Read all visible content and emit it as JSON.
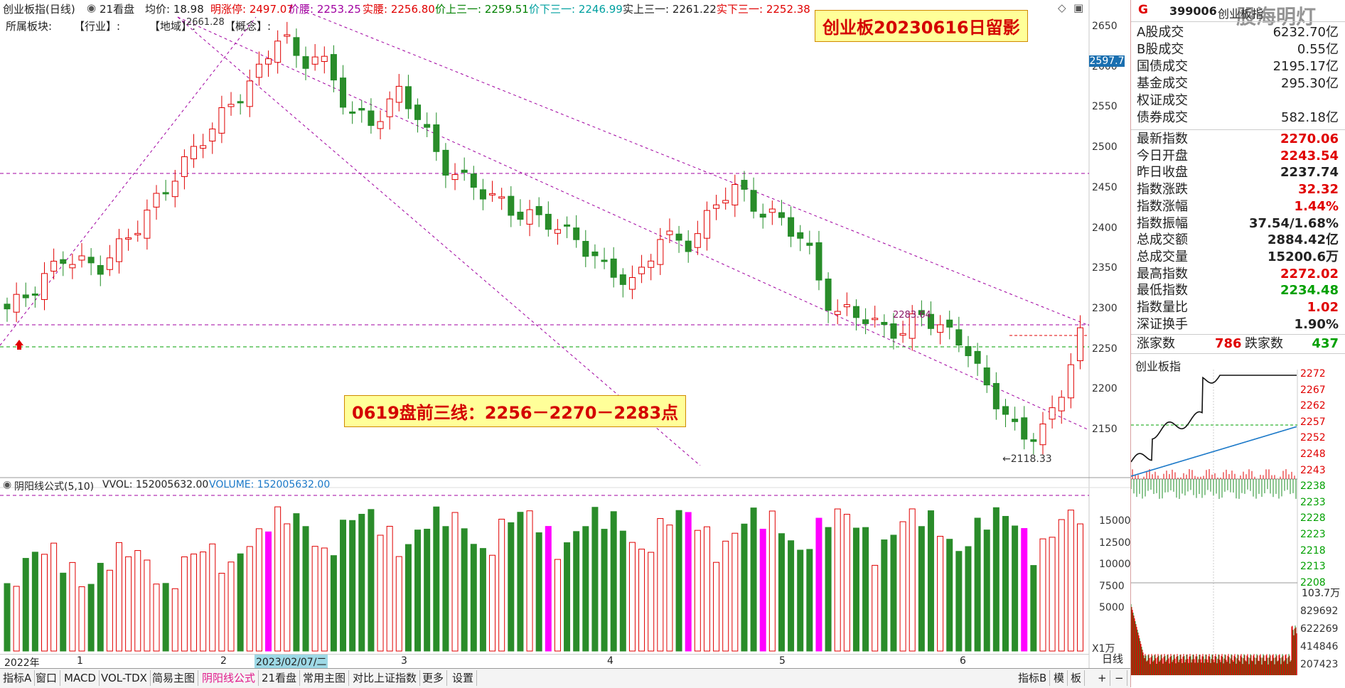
{
  "header": {
    "title": "创业板指(日线)",
    "mode": "21看盘",
    "avg_label": "均价: 18.98",
    "limit_up_label": "明涨停: 2497.07",
    "price_label": "价腰: 2253.25",
    "real_label": "实腰: 2256.80",
    "price_up_label": "价上三一: 2259.51",
    "price_down_label": "价下三一: 2246.99",
    "real_up_label": "实上三一: 2261.22",
    "real_down_label": "实下三一: 2252.38",
    "sector_label": "所属板块:",
    "industry_label": "【行业】:",
    "region_label": "【地域】:",
    "concept_label": "【概念】:",
    "peak_label": "2661.28"
  },
  "callouts": {
    "top": "创业板20230616日留影",
    "middle": "0619盘前三线：2256－2270－2283点"
  },
  "annotations": {
    "high_marker": "2283.64",
    "low_marker": "2118.33",
    "current_tag": "2597.7"
  },
  "price_axis": [
    "2650",
    "2600",
    "2550",
    "2500",
    "2450",
    "2400",
    "2350",
    "2300",
    "2250",
    "2200",
    "2150"
  ],
  "volume_axis": [
    "15000",
    "12500",
    "10000",
    "7500",
    "5000"
  ],
  "volume_unit": "X1万",
  "volume_header": {
    "name": "阴阳线公式(5,10)",
    "vvol": "VVOL: 152005632.00",
    "volume": "VOLUME: 152005632.00"
  },
  "date_axis": [
    "2022年",
    "1",
    "2",
    "2023/02/07/二",
    "3",
    "4",
    "5",
    "6"
  ],
  "tabs": [
    "指标A",
    "窗口",
    "MACD",
    "VOL-TDX",
    "简易主图",
    "阴阳线公式",
    "21看盘",
    "常用主图",
    "对比上证指数",
    "更多",
    "设置"
  ],
  "tabs_right": [
    "指标B",
    "模",
    "板",
    "日线",
    "+",
    "−"
  ],
  "right_panel": {
    "code_badge": "G",
    "code": "399006",
    "name": "创业板指",
    "watermark": "股海明灯",
    "stats_top": [
      {
        "label": "A股成交",
        "value": "6232.70亿"
      },
      {
        "label": "B股成交",
        "value": "0.55亿"
      },
      {
        "label": "国债成交",
        "value": "2195.17亿"
      },
      {
        "label": "基金成交",
        "value": "295.30亿"
      },
      {
        "label": "权证成交",
        "value": ""
      },
      {
        "label": "债券成交",
        "value": "582.18亿"
      }
    ],
    "stats_main": [
      {
        "label": "最新指数",
        "value": "2270.06",
        "color": "#e00000"
      },
      {
        "label": "今日开盘",
        "value": "2243.54",
        "color": "#e00000"
      },
      {
        "label": "昨日收盘",
        "value": "2237.74",
        "color": "#222222"
      },
      {
        "label": "指数涨跌",
        "value": "32.32",
        "color": "#e00000"
      },
      {
        "label": "指数涨幅",
        "value": "1.44%",
        "color": "#e00000"
      },
      {
        "label": "指数振幅",
        "value": "37.54/1.68%",
        "color": "#222222"
      },
      {
        "label": "总成交额",
        "value": "2884.42亿",
        "color": "#222222"
      },
      {
        "label": "总成交量",
        "value": "15200.6万",
        "color": "#222222"
      },
      {
        "label": "最高指数",
        "value": "2272.02",
        "color": "#e00000"
      },
      {
        "label": "最低指数",
        "value": "2234.48",
        "color": "#00a000"
      },
      {
        "label": "指数量比",
        "value": "1.02",
        "color": "#e00000"
      },
      {
        "label": "深证换手",
        "value": "1.90%",
        "color": "#222222"
      }
    ],
    "breadth": {
      "up_label": "涨家数",
      "up": "786",
      "down_label": "跌家数",
      "down": "437"
    },
    "mini_title": "创业板指",
    "mini_price_axis": [
      "2272",
      "2267",
      "2262",
      "2257",
      "2252",
      "2248",
      "2243",
      "2238",
      "2233",
      "2228",
      "2223",
      "2218",
      "2213",
      "2208"
    ],
    "mini_vol_unit": "103.7万",
    "mini_vol_axis": [
      "829692",
      "622269",
      "414846",
      "207423"
    ]
  }
}
